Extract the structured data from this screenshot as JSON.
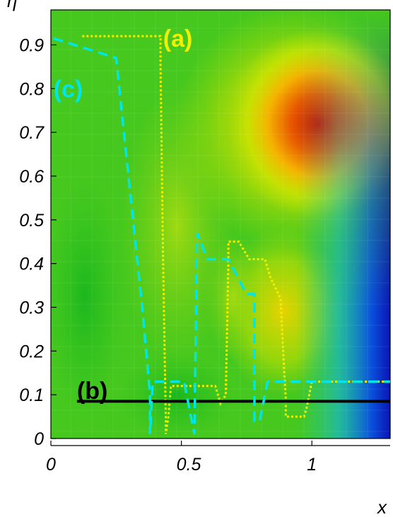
{
  "chart_data": {
    "type": "line",
    "xlabel": "x",
    "ylabel": "η",
    "xlim": [
      0,
      1.3
    ],
    "ylim": [
      0,
      0.98
    ],
    "x_ticks": [
      0,
      0.5,
      1
    ],
    "x_tick_labels": [
      "0",
      "0.5",
      "1"
    ],
    "y_ticks": [
      0,
      0.1,
      0.2,
      0.3,
      0.4,
      0.5,
      0.6,
      0.7,
      0.8,
      0.9
    ],
    "y_tick_labels": [
      "0",
      "0.1",
      "0.2",
      "0.3",
      "0.4",
      "0.5",
      "0.6",
      "0.7",
      "0.8",
      "0.9"
    ],
    "background": "filled contour field (blue → green → yellow → red)",
    "colors": {
      "field_base": "#3cc81e",
      "field_hot": "#d21e00",
      "field_cold": "#0a14c8",
      "series_a": "#f0f000",
      "series_b": "#000000",
      "series_c": "#00e6e6"
    },
    "series": [
      {
        "name": "(a)",
        "style": "dotted",
        "label_at": [
          0.43,
          0.915
        ],
        "points": [
          [
            0.12,
            0.92
          ],
          [
            0.41,
            0.92
          ],
          [
            0.42,
            0.92
          ],
          [
            0.42,
            0.85
          ],
          [
            0.43,
            0.4
          ],
          [
            0.44,
            0.05
          ],
          [
            0.44,
            0.01
          ],
          [
            0.45,
            0.05
          ],
          [
            0.46,
            0.12
          ],
          [
            0.63,
            0.12
          ],
          [
            0.65,
            0.08
          ],
          [
            0.67,
            0.1
          ],
          [
            0.68,
            0.4
          ],
          [
            0.68,
            0.45
          ],
          [
            0.72,
            0.45
          ],
          [
            0.76,
            0.41
          ],
          [
            0.82,
            0.41
          ],
          [
            0.84,
            0.37
          ],
          [
            0.88,
            0.32
          ],
          [
            0.89,
            0.2
          ],
          [
            0.9,
            0.09
          ],
          [
            0.9,
            0.05
          ],
          [
            0.97,
            0.05
          ],
          [
            0.98,
            0.07
          ],
          [
            0.99,
            0.1
          ],
          [
            1.0,
            0.13
          ],
          [
            1.3,
            0.13
          ]
        ]
      },
      {
        "name": "(b)",
        "style": "solid",
        "label_at": [
          0.1,
          0.11
        ],
        "points": [
          [
            0.1,
            0.085
          ],
          [
            1.3,
            0.085
          ]
        ]
      },
      {
        "name": "(c)",
        "style": "dashed",
        "label_at": [
          0.01,
          0.8
        ],
        "points": [
          [
            0.01,
            0.915
          ],
          [
            0.25,
            0.87
          ],
          [
            0.35,
            0.3
          ],
          [
            0.38,
            0.1
          ],
          [
            0.38,
            0.01
          ],
          [
            0.39,
            0.13
          ],
          [
            0.51,
            0.13
          ],
          [
            0.55,
            0.01
          ],
          [
            0.56,
            0.47
          ],
          [
            0.6,
            0.41
          ],
          [
            0.68,
            0.41
          ],
          [
            0.75,
            0.33
          ],
          [
            0.78,
            0.33
          ],
          [
            0.78,
            0.04
          ],
          [
            0.8,
            0.04
          ],
          [
            0.83,
            0.13
          ],
          [
            1.3,
            0.13
          ]
        ]
      }
    ]
  }
}
